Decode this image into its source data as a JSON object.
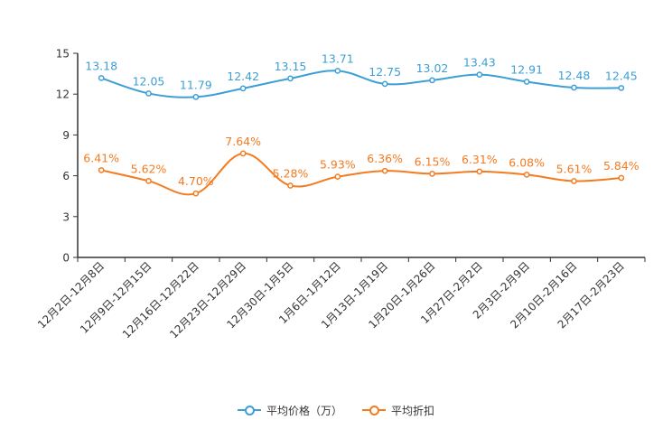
{
  "chart_data": {
    "type": "line",
    "title": "",
    "xlabel": "",
    "ylabel": "",
    "ylim": [
      0,
      15
    ],
    "yticks": [
      0,
      3,
      6,
      9,
      12,
      15
    ],
    "grid": false,
    "legend_position": "bottom-center",
    "categories": [
      "12月2日-12月8日",
      "12月9日-12月15日",
      "12月16日-12月22日",
      "12月23日-12月29日",
      "12月30日-1月5日",
      "1月6日-1月12日",
      "1月13日-1月19日",
      "1月20日-1月26日",
      "1月27日-2月2日",
      "2月3日-2月9日",
      "2月10日-2月16日",
      "2月17日-2月23日"
    ],
    "series": [
      {
        "name": "平均价格（万）",
        "color": "#3d9fd6",
        "values": [
          13.18,
          12.05,
          11.79,
          12.42,
          13.15,
          13.71,
          12.75,
          13.02,
          13.43,
          12.91,
          12.48,
          12.45
        ],
        "labels": [
          "13.18",
          "12.05",
          "11.79",
          "12.42",
          "13.15",
          "13.71",
          "12.75",
          "13.02",
          "13.43",
          "12.91",
          "12.48",
          "12.45"
        ]
      },
      {
        "name": "平均折扣",
        "color": "#f47b20",
        "values": [
          6.41,
          5.62,
          4.7,
          7.64,
          5.28,
          5.93,
          6.36,
          6.15,
          6.31,
          6.08,
          5.61,
          5.84
        ],
        "labels": [
          "6.41%",
          "5.62%",
          "4.70%",
          "7.64%",
          "5.28%",
          "5.93%",
          "6.36%",
          "6.15%",
          "6.31%",
          "6.08%",
          "5.61%",
          "5.84%"
        ]
      }
    ]
  }
}
